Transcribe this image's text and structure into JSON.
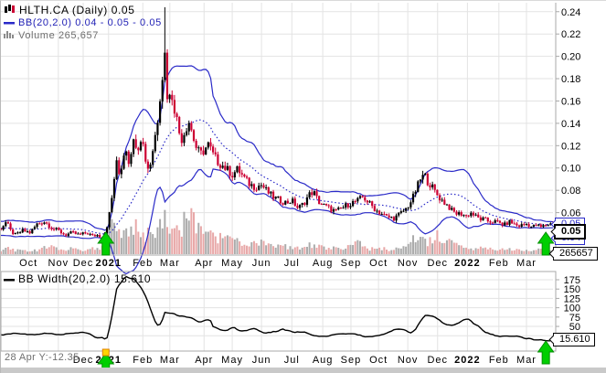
{
  "header": {
    "symbol_line": "HLTH.CA (Daily) 0.05",
    "bb_line": "BB(20,2.0) 0.04 - 0.05 - 0.05",
    "volume_line": "Volume 265,657"
  },
  "bbwidth_header": "BB Width(20,2.0) 15.610",
  "status_text": "28 Apr Y:-12.35",
  "callouts": {
    "price": "0.05",
    "bb_upper": "0.05",
    "bb_lower": "0.04",
    "volume": "265657",
    "bbwidth": "15.610"
  },
  "colors": {
    "candle_up": "#000000",
    "candle_down": "#cc0033",
    "band": "#2a2ac8",
    "bbwidth_line": "#000000",
    "volume_up": "#ababab",
    "volume_down": "#e8a8a8",
    "grid": "#e3e3e3",
    "border": "#a8a8a8",
    "arrow_fill": "#00cf00",
    "arrow_stroke": "#008f00",
    "flag_fill": "#ffd400",
    "flag_stroke": "#e08000",
    "tick_text": "#000000"
  },
  "chart_data": [
    {
      "type": "candlestick",
      "symbol": "HLTH.CA",
      "interval": "Daily",
      "last_price": 0.05,
      "bb": {
        "period": 20,
        "stdev": 2.0,
        "last_lower": 0.04,
        "last_middle": 0.05,
        "last_upper": 0.05
      },
      "last_volume": 265657,
      "y_range": [
        0.022,
        0.248
      ],
      "y_ticks": [
        {
          "v": 0.24,
          "label": "0.24"
        },
        {
          "v": 0.22,
          "label": "0.22"
        },
        {
          "v": 0.2,
          "label": "0.20"
        },
        {
          "v": 0.18,
          "label": "0.18"
        },
        {
          "v": 0.16,
          "label": "0.16"
        },
        {
          "v": 0.14,
          "label": "0.14"
        },
        {
          "v": 0.12,
          "label": "0.12"
        },
        {
          "v": 0.1,
          "label": "0.10"
        },
        {
          "v": 0.08,
          "label": "0.08"
        },
        {
          "v": 0.06,
          "label": "0.06"
        }
      ],
      "x_ticks": [
        {
          "f": 0.05,
          "label": "Oct"
        },
        {
          "f": 0.104,
          "label": "Nov"
        },
        {
          "f": 0.149,
          "label": "Dec"
        },
        {
          "f": 0.195,
          "label": "2021",
          "bold": true
        },
        {
          "f": 0.257,
          "label": "Feb"
        },
        {
          "f": 0.306,
          "label": "Mar"
        },
        {
          "f": 0.368,
          "label": "Apr"
        },
        {
          "f": 0.419,
          "label": "May"
        },
        {
          "f": 0.472,
          "label": "Jun"
        },
        {
          "f": 0.527,
          "label": "Jul"
        },
        {
          "f": 0.583,
          "label": "Aug"
        },
        {
          "f": 0.634,
          "label": "Sep"
        },
        {
          "f": 0.684,
          "label": "Oct"
        },
        {
          "f": 0.737,
          "label": "Nov"
        },
        {
          "f": 0.791,
          "label": "Dec"
        },
        {
          "f": 0.845,
          "label": "2022",
          "bold": true
        },
        {
          "f": 0.902,
          "label": "Feb"
        },
        {
          "f": 0.952,
          "label": "Mar"
        }
      ],
      "n_candles": 230,
      "candle_jitter": 0.08,
      "wick_jitter": 0.035,
      "close_anchors": [
        [
          0.0,
          0.046
        ],
        [
          0.01,
          0.052
        ],
        [
          0.017,
          0.044
        ],
        [
          0.026,
          0.04
        ],
        [
          0.04,
          0.044
        ],
        [
          0.053,
          0.042
        ],
        [
          0.066,
          0.05
        ],
        [
          0.079,
          0.052
        ],
        [
          0.093,
          0.046
        ],
        [
          0.104,
          0.044
        ],
        [
          0.116,
          0.04
        ],
        [
          0.129,
          0.042
        ],
        [
          0.142,
          0.04
        ],
        [
          0.156,
          0.042
        ],
        [
          0.166,
          0.039
        ],
        [
          0.175,
          0.04
        ],
        [
          0.185,
          0.038
        ],
        [
          0.192,
          0.048
        ],
        [
          0.199,
          0.065
        ],
        [
          0.205,
          0.09
        ],
        [
          0.21,
          0.105
        ],
        [
          0.215,
          0.092
        ],
        [
          0.222,
          0.112
        ],
        [
          0.227,
          0.118
        ],
        [
          0.232,
          0.105
        ],
        [
          0.237,
          0.12
        ],
        [
          0.243,
          0.125
        ],
        [
          0.248,
          0.118
        ],
        [
          0.253,
          0.128
        ],
        [
          0.258,
          0.12
        ],
        [
          0.263,
          0.105
        ],
        [
          0.268,
          0.098
        ],
        [
          0.273,
          0.11
        ],
        [
          0.278,
          0.125
        ],
        [
          0.283,
          0.14
        ],
        [
          0.288,
          0.165
        ],
        [
          0.293,
          0.185
        ],
        [
          0.296,
          0.21
        ],
        [
          0.3,
          0.175
        ],
        [
          0.303,
          0.155
        ],
        [
          0.308,
          0.17
        ],
        [
          0.313,
          0.158
        ],
        [
          0.318,
          0.145
        ],
        [
          0.323,
          0.132
        ],
        [
          0.328,
          0.126
        ],
        [
          0.334,
          0.135
        ],
        [
          0.341,
          0.142
        ],
        [
          0.348,
          0.128
        ],
        [
          0.354,
          0.118
        ],
        [
          0.361,
          0.112
        ],
        [
          0.368,
          0.116
        ],
        [
          0.376,
          0.121
        ],
        [
          0.384,
          0.112
        ],
        [
          0.392,
          0.106
        ],
        [
          0.402,
          0.102
        ],
        [
          0.411,
          0.098
        ],
        [
          0.419,
          0.094
        ],
        [
          0.429,
          0.099
        ],
        [
          0.439,
          0.092
        ],
        [
          0.449,
          0.086
        ],
        [
          0.46,
          0.083
        ],
        [
          0.472,
          0.085
        ],
        [
          0.482,
          0.079
        ],
        [
          0.493,
          0.074
        ],
        [
          0.505,
          0.071
        ],
        [
          0.517,
          0.069
        ],
        [
          0.527,
          0.071
        ],
        [
          0.538,
          0.064
        ],
        [
          0.548,
          0.068
        ],
        [
          0.558,
          0.076
        ],
        [
          0.566,
          0.079
        ],
        [
          0.575,
          0.07
        ],
        [
          0.583,
          0.067
        ],
        [
          0.594,
          0.064
        ],
        [
          0.606,
          0.061
        ],
        [
          0.618,
          0.064
        ],
        [
          0.627,
          0.067
        ],
        [
          0.637,
          0.069
        ],
        [
          0.647,
          0.071
        ],
        [
          0.656,
          0.074
        ],
        [
          0.664,
          0.07
        ],
        [
          0.672,
          0.066
        ],
        [
          0.68,
          0.062
        ],
        [
          0.69,
          0.059
        ],
        [
          0.7,
          0.056
        ],
        [
          0.712,
          0.055
        ],
        [
          0.723,
          0.059
        ],
        [
          0.735,
          0.064
        ],
        [
          0.745,
          0.072
        ],
        [
          0.753,
          0.082
        ],
        [
          0.76,
          0.09
        ],
        [
          0.767,
          0.094
        ],
        [
          0.773,
          0.088
        ],
        [
          0.78,
          0.084
        ],
        [
          0.786,
          0.079
        ],
        [
          0.793,
          0.074
        ],
        [
          0.801,
          0.07
        ],
        [
          0.81,
          0.066
        ],
        [
          0.818,
          0.061
        ],
        [
          0.826,
          0.059
        ],
        [
          0.834,
          0.059
        ],
        [
          0.843,
          0.057
        ],
        [
          0.851,
          0.06
        ],
        [
          0.859,
          0.057
        ],
        [
          0.868,
          0.054
        ],
        [
          0.876,
          0.054
        ],
        [
          0.884,
          0.052
        ],
        [
          0.894,
          0.052
        ],
        [
          0.902,
          0.051
        ],
        [
          0.912,
          0.049
        ],
        [
          0.921,
          0.052
        ],
        [
          0.929,
          0.05
        ],
        [
          0.937,
          0.048
        ],
        [
          0.945,
          0.049
        ],
        [
          0.954,
          0.05
        ],
        [
          0.962,
          0.047
        ],
        [
          0.97,
          0.049
        ],
        [
          0.978,
          0.047
        ],
        [
          0.987,
          0.049
        ],
        [
          0.995,
          0.05
        ]
      ],
      "wick_high_override": {
        "f": 0.296,
        "high": 0.244
      },
      "volume_anchors": [
        [
          0.0,
          0.06
        ],
        [
          0.013,
          0.18
        ],
        [
          0.023,
          0.08
        ],
        [
          0.05,
          0.06
        ],
        [
          0.075,
          0.1
        ],
        [
          0.091,
          0.22
        ],
        [
          0.104,
          0.08
        ],
        [
          0.124,
          0.1
        ],
        [
          0.149,
          0.08
        ],
        [
          0.166,
          0.12
        ],
        [
          0.179,
          0.1
        ],
        [
          0.189,
          0.3
        ],
        [
          0.195,
          0.45
        ],
        [
          0.202,
          0.6
        ],
        [
          0.209,
          0.5
        ],
        [
          0.215,
          0.4
        ],
        [
          0.222,
          0.55
        ],
        [
          0.228,
          0.45
        ],
        [
          0.235,
          0.38
        ],
        [
          0.243,
          0.5
        ],
        [
          0.252,
          0.42
        ],
        [
          0.262,
          0.35
        ],
        [
          0.27,
          0.45
        ],
        [
          0.278,
          0.4
        ],
        [
          0.286,
          0.55
        ],
        [
          0.295,
          0.7
        ],
        [
          0.303,
          0.6
        ],
        [
          0.311,
          0.5
        ],
        [
          0.32,
          0.45
        ],
        [
          0.328,
          0.4
        ],
        [
          0.336,
          0.95
        ],
        [
          0.344,
          0.75
        ],
        [
          0.353,
          0.5
        ],
        [
          0.361,
          0.4
        ],
        [
          0.371,
          0.45
        ],
        [
          0.381,
          0.35
        ],
        [
          0.391,
          0.28
        ],
        [
          0.402,
          0.32
        ],
        [
          0.414,
          0.25
        ],
        [
          0.427,
          0.3
        ],
        [
          0.44,
          0.22
        ],
        [
          0.454,
          0.18
        ],
        [
          0.467,
          0.25
        ],
        [
          0.48,
          0.18
        ],
        [
          0.493,
          0.14
        ],
        [
          0.507,
          0.18
        ],
        [
          0.52,
          0.12
        ],
        [
          0.533,
          0.1
        ],
        [
          0.546,
          0.16
        ],
        [
          0.56,
          0.2
        ],
        [
          0.571,
          0.14
        ],
        [
          0.583,
          0.12
        ],
        [
          0.596,
          0.1
        ],
        [
          0.609,
          0.12
        ],
        [
          0.623,
          0.1
        ],
        [
          0.636,
          0.16
        ],
        [
          0.646,
          0.22
        ],
        [
          0.656,
          0.14
        ],
        [
          0.667,
          0.1
        ],
        [
          0.679,
          0.12
        ],
        [
          0.692,
          0.1
        ],
        [
          0.705,
          0.08
        ],
        [
          0.719,
          0.1
        ],
        [
          0.732,
          0.14
        ],
        [
          0.745,
          0.25
        ],
        [
          0.755,
          0.35
        ],
        [
          0.765,
          0.28
        ],
        [
          0.775,
          0.22
        ],
        [
          0.785,
          0.3
        ],
        [
          0.795,
          0.35
        ],
        [
          0.805,
          0.28
        ],
        [
          0.815,
          0.22
        ],
        [
          0.824,
          0.16
        ],
        [
          0.836,
          0.12
        ],
        [
          0.848,
          0.14
        ],
        [
          0.859,
          0.1
        ],
        [
          0.871,
          0.12
        ],
        [
          0.883,
          0.09
        ],
        [
          0.894,
          0.11
        ],
        [
          0.906,
          0.08
        ],
        [
          0.917,
          0.12
        ],
        [
          0.927,
          0.09
        ],
        [
          0.939,
          0.07
        ],
        [
          0.95,
          0.09
        ],
        [
          0.962,
          0.07
        ],
        [
          0.974,
          0.08
        ],
        [
          0.983,
          0.1
        ],
        [
          0.995,
          0.07
        ]
      ],
      "signals": [
        {
          "f": 0.19,
          "dir": "up"
        },
        {
          "f": 0.987,
          "dir": "up"
        }
      ]
    },
    {
      "type": "line",
      "title": "BB Width(20,2.0)",
      "derived_from": "(upper-lower)/middle*100",
      "last_value": 15.61,
      "y_range": [
        -16,
        197
      ],
      "y_ticks": [
        {
          "v": 175,
          "label": "175"
        },
        {
          "v": 150,
          "label": "150"
        },
        {
          "v": 125,
          "label": "125"
        },
        {
          "v": 100,
          "label": "100"
        },
        {
          "v": 75,
          "label": "75"
        },
        {
          "v": 50,
          "label": "50"
        },
        {
          "v": 25,
          "label": "25"
        }
      ],
      "x_ticks": [
        {
          "f": 0.149,
          "label": "Dec"
        },
        {
          "f": 0.195,
          "label": "2021",
          "bold": true
        },
        {
          "f": 0.257,
          "label": "Feb"
        },
        {
          "f": 0.306,
          "label": "Mar"
        },
        {
          "f": 0.368,
          "label": "Apr"
        },
        {
          "f": 0.419,
          "label": "May"
        },
        {
          "f": 0.472,
          "label": "Jun"
        },
        {
          "f": 0.527,
          "label": "Jul"
        },
        {
          "f": 0.583,
          "label": "Aug"
        },
        {
          "f": 0.634,
          "label": "Sep"
        },
        {
          "f": 0.684,
          "label": "Oct"
        },
        {
          "f": 0.737,
          "label": "Nov"
        },
        {
          "f": 0.791,
          "label": "Dec"
        },
        {
          "f": 0.845,
          "label": "2022",
          "bold": true
        },
        {
          "f": 0.902,
          "label": "Feb"
        },
        {
          "f": 0.952,
          "label": "Mar"
        }
      ],
      "signals": [
        {
          "f": 0.19,
          "dir": "up",
          "flag": true,
          "dy": 13
        },
        {
          "f": 0.987,
          "dir": "up",
          "dy": 0
        }
      ]
    }
  ]
}
